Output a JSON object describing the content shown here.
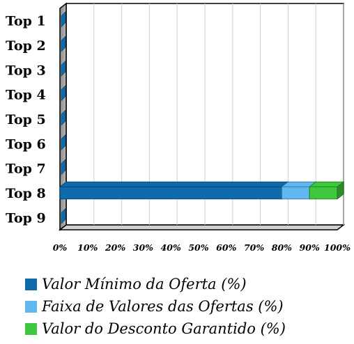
{
  "chart_data": {
    "type": "bar",
    "orientation": "horizontal",
    "stacked": true,
    "categories": [
      "Top 1",
      "Top 2",
      "Top 3",
      "Top 4",
      "Top 5",
      "Top 6",
      "Top 7",
      "Top 8",
      "Top 9"
    ],
    "series": [
      {
        "name": "Valor Mínimo da Oferta (%)",
        "color": "#0f6aab",
        "values": [
          0,
          0,
          0,
          0,
          0,
          0,
          0,
          80,
          0
        ]
      },
      {
        "name": "Faixa de Valores das Ofertas (%)",
        "color": "#5fb8f0",
        "values": [
          0,
          0,
          0,
          0,
          0,
          0,
          0,
          10,
          0
        ]
      },
      {
        "name": "Valor do Desconto Garantido (%)",
        "color": "#3ec83e",
        "values": [
          0,
          0,
          0,
          0,
          0,
          0,
          0,
          10,
          0
        ]
      }
    ],
    "xticks": [
      "0%",
      "10%",
      "20%",
      "30%",
      "40%",
      "50%",
      "60%",
      "70%",
      "80%",
      "90%",
      "100%"
    ],
    "xlim": [
      0,
      100
    ],
    "grid": "vertical",
    "legend_position": "bottom"
  }
}
